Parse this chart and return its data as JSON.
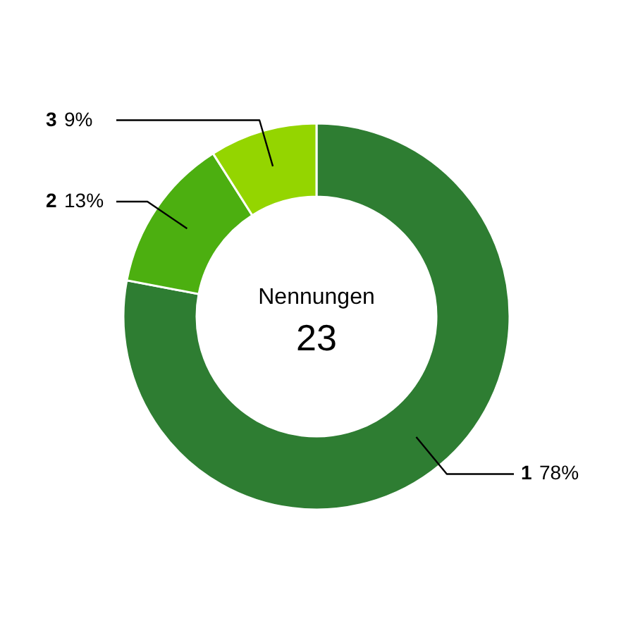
{
  "chart_data": {
    "type": "donut",
    "categories": [
      "1",
      "2",
      "3"
    ],
    "values": [
      78,
      13,
      9
    ],
    "colors": [
      "#2e7d32",
      "#4caf10",
      "#94d500"
    ],
    "value_labels": [
      "78%",
      "13%",
      "9%"
    ],
    "annotations": [
      "Nennungen",
      "23"
    ]
  }
}
